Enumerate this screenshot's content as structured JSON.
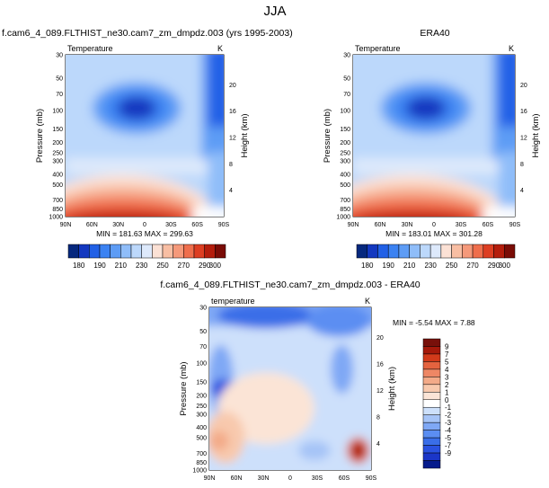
{
  "figure": {
    "title": "JJA"
  },
  "colors": {
    "full_field_palette": [
      "#06287e",
      "#1338c0",
      "#2160e6",
      "#3b82f2",
      "#5d9cf5",
      "#8fbdf9",
      "#bcd8fb",
      "#dde9fb",
      "#fbe1d5",
      "#f8bea3",
      "#f5997a",
      "#ef6e4c",
      "#dd3e22",
      "#b41d0c",
      "#7a0c06"
    ],
    "difference_palette": [
      "#061c8c",
      "#1b36c8",
      "#2a52e0",
      "#3a6ee8",
      "#5b8ef2",
      "#7fa8f5",
      "#a6c4f7",
      "#cde0fb",
      "#ffffff",
      "#fbe4d6",
      "#f8c9ad",
      "#f3aa88",
      "#ee8765",
      "#e4633f",
      "#d23a1a",
      "#a5190a",
      "#78100a"
    ]
  },
  "chart_data": [
    {
      "type": "heatmap",
      "panel_title": "f.cam6_4_089.FLTHIST_ne30.cam7_zm_dmpdz.003 (yrs 1995-2003)",
      "variable": "Temperature",
      "unit": "K",
      "xlabel": "",
      "ylabel": "Pressure (mb)",
      "right_label": "Height (km)",
      "x_ticks": [
        "90N",
        "60N",
        "30N",
        "0",
        "30S",
        "60S",
        "90S"
      ],
      "y_ticks": [
        "30",
        "50",
        "70",
        "100",
        "150",
        "200",
        "250",
        "300",
        "400",
        "500",
        "700",
        "850",
        "1000"
      ],
      "height_ticks": [
        "4",
        "8",
        "12",
        "16",
        "20"
      ],
      "stats": "MIN = 181.63  MAX = 299.63",
      "colorbar_labels": [
        "180",
        "190",
        "210",
        "230",
        "250",
        "270",
        "290",
        "300"
      ],
      "min": 181.63,
      "max": 299.63
    },
    {
      "type": "heatmap",
      "panel_title": "ERA40",
      "variable": "Temperature",
      "unit": "K",
      "xlabel": "",
      "ylabel": "Pressure (mb)",
      "right_label": "Height (km)",
      "x_ticks": [
        "90N",
        "60N",
        "30N",
        "0",
        "30S",
        "60S",
        "90S"
      ],
      "y_ticks": [
        "30",
        "50",
        "70",
        "100",
        "150",
        "200",
        "250",
        "300",
        "400",
        "500",
        "700",
        "850",
        "1000"
      ],
      "height_ticks": [
        "4",
        "8",
        "12",
        "16",
        "20"
      ],
      "stats": "MIN = 183.01  MAX = 301.28",
      "colorbar_labels": [
        "180",
        "190",
        "210",
        "230",
        "250",
        "270",
        "290",
        "300"
      ],
      "min": 183.01,
      "max": 301.28
    },
    {
      "type": "heatmap",
      "panel_title": "f.cam6_4_089.FLTHIST_ne30.cam7_zm_dmpdz.003 - ERA40",
      "variable": "temperature",
      "unit": "K",
      "xlabel": "",
      "ylabel": "Pressure (mb)",
      "right_label": "Height (km)",
      "x_ticks": [
        "90N",
        "60N",
        "30N",
        "0",
        "30S",
        "60S",
        "90S"
      ],
      "y_ticks": [
        "30",
        "50",
        "70",
        "100",
        "150",
        "200",
        "250",
        "300",
        "400",
        "500",
        "700",
        "850",
        "1000"
      ],
      "height_ticks": [
        "4",
        "8",
        "12",
        "16",
        "20"
      ],
      "stats": "MIN = -5.54  MAX =  7.88",
      "colorbar_labels": [
        "9",
        "7",
        "5",
        "4",
        "3",
        "2",
        "1",
        "0",
        "-1",
        "-2",
        "-3",
        "-4",
        "-5",
        "-7",
        "-9"
      ],
      "min": -5.54,
      "max": 7.88
    }
  ]
}
